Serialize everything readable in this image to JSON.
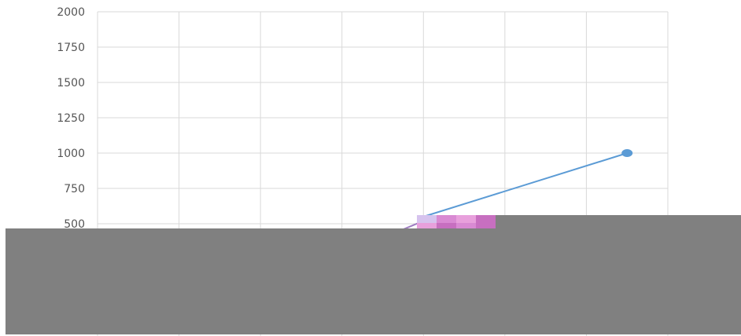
{
  "chart_data": {
    "type": "line",
    "title": "",
    "xlabel": "",
    "ylabel": "",
    "ylim": [
      0,
      2000
    ],
    "y_ticks": [
      "2000",
      "1750",
      "1500",
      "1250",
      "1000",
      "750",
      "500"
    ],
    "grid": true,
    "x_slots": 7,
    "series": [
      {
        "color": "#5b9bd5",
        "points": [
          {
            "x": 4.0,
            "y": 550
          },
          {
            "x": 6.5,
            "y": 1000
          }
        ]
      },
      {
        "color": "#9e7cc1",
        "points": [
          {
            "x": 3.5,
            "y": 400
          },
          {
            "x": 4.0,
            "y": 520
          }
        ]
      }
    ]
  },
  "overlays": {
    "redaction_color": "#808080",
    "artifact_colors": [
      "#d6c3ee",
      "#d98ad3",
      "#e8a0dc",
      "#c76fc0"
    ]
  }
}
